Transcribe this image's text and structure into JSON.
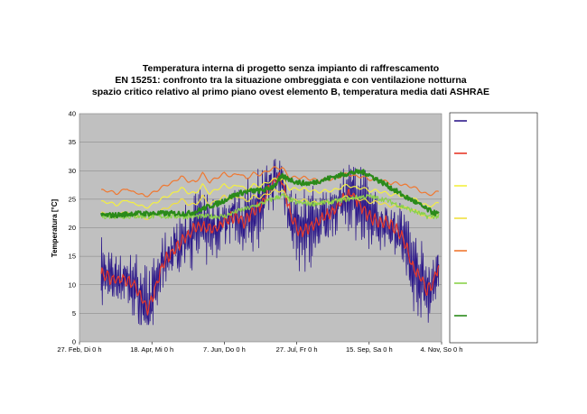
{
  "chart_data": {
    "type": "line",
    "title_lines": [
      "Temperatura interna di progetto senza impianto di raffrescamento",
      "EN 15251: confronto tra la situazione ombreggiata e con ventilazione notturna",
      "spazio critico relativo al primo piano ovest elemento B, temperatura media dati ASHRAE"
    ],
    "ylabel": "Temperatura [°C]",
    "xlabel": "",
    "ylim": [
      0,
      40
    ],
    "yticks": [
      0,
      5,
      10,
      15,
      20,
      25,
      30,
      35,
      40
    ],
    "xlim": [
      0,
      250
    ],
    "xticks": [
      {
        "day": 0,
        "label": "27. Feb, Di 0 h"
      },
      {
        "day": 50,
        "label": "18. Apr, Mi 0 h"
      },
      {
        "day": 100,
        "label": "7. Jun, Do 0 h"
      },
      {
        "day": 150,
        "label": "27. Jul, Fr 0 h"
      },
      {
        "day": 200,
        "label": "15. Sep, Sa 0 h"
      },
      {
        "day": 250,
        "label": "4. Nov, So 0 h"
      }
    ],
    "grid": true,
    "legend_placement": "right",
    "series": [
      {
        "color": "#2e1a8a",
        "style": "noisy",
        "x": [
          15,
          22,
          30,
          38,
          42,
          47,
          52,
          58,
          65,
          72,
          80,
          88,
          95,
          100,
          107,
          114,
          120,
          126,
          131,
          137,
          140,
          146,
          152,
          158,
          164,
          170,
          176,
          182,
          188,
          194,
          200,
          206,
          212,
          218,
          224,
          230,
          236,
          240,
          244,
          246,
          248
        ],
        "y": [
          12,
          11,
          11,
          10,
          8,
          5.5,
          9,
          14,
          16,
          18,
          20,
          20,
          20,
          21,
          22,
          21,
          23,
          24,
          27,
          29,
          28,
          22,
          19,
          20,
          21,
          22,
          23,
          25,
          26,
          24,
          22,
          21,
          21,
          20,
          18,
          13,
          11,
          9,
          10,
          12,
          13
        ]
      },
      {
        "color": "#e8382a",
        "style": "smooth",
        "x": [
          15,
          22,
          30,
          38,
          42,
          47,
          52,
          58,
          65,
          72,
          80,
          88,
          95,
          100,
          107,
          114,
          120,
          126,
          131,
          137,
          140,
          146,
          152,
          158,
          164,
          170,
          176,
          182,
          188,
          194,
          200,
          206,
          212,
          218,
          224,
          230,
          236,
          240,
          244,
          246,
          248
        ],
        "y": [
          12,
          11,
          11,
          10,
          8,
          5.5,
          9,
          14,
          16,
          18,
          20,
          20,
          20,
          21,
          22,
          21,
          23,
          24,
          27,
          29,
          28,
          22,
          19,
          20,
          21,
          22,
          23,
          25,
          26,
          24,
          22,
          21,
          21,
          20,
          18,
          13,
          11,
          9,
          10,
          12,
          13
        ]
      },
      {
        "color": "#f4f040",
        "style": "comfort",
        "x": [
          15,
          20,
          25,
          30,
          33,
          36,
          40,
          45,
          50,
          55,
          60,
          65,
          70,
          75,
          80,
          85,
          90,
          95,
          100,
          105,
          110,
          115,
          120,
          125,
          130,
          135,
          140,
          145,
          150,
          155,
          160,
          165,
          170,
          175,
          180,
          185,
          190,
          195,
          200,
          205,
          210,
          215,
          220,
          225,
          230,
          235,
          240,
          245,
          248
        ],
        "y": [
          24.5,
          24.5,
          24,
          24.5,
          25,
          24.2,
          24.2,
          23.5,
          24,
          24.8,
          25.5,
          26,
          27,
          26.2,
          26,
          27.5,
          26,
          26.8,
          27.5,
          27,
          27.6,
          26.6,
          27.5,
          27.3,
          28,
          28.5,
          28.5,
          26.8,
          26.8,
          26.8,
          26.5,
          26.3,
          26.5,
          26.5,
          27,
          27.5,
          27,
          27,
          26.5,
          26.5,
          26.2,
          25.8,
          25.8,
          25.4,
          25.2,
          24.5,
          23.8,
          24,
          24.4
        ]
      },
      {
        "color": "#f0e040",
        "style": "comfort",
        "x": [
          15,
          20,
          25,
          30,
          33,
          36,
          40,
          45,
          50,
          55,
          60,
          65,
          70,
          75,
          80,
          85,
          90,
          95,
          100,
          105,
          110,
          115,
          120,
          125,
          130,
          135,
          140,
          145,
          150,
          155,
          160,
          165,
          170,
          175,
          180,
          185,
          190,
          195,
          200,
          205,
          210,
          215,
          220,
          225,
          230,
          235,
          240,
          245,
          248
        ],
        "y": [
          22.5,
          22.5,
          22,
          22.5,
          23,
          22.2,
          22.2,
          21.5,
          22,
          22.8,
          23.5,
          24,
          25,
          24.2,
          24,
          25.5,
          24,
          24.8,
          25.5,
          25,
          25.6,
          24.6,
          25.5,
          25.3,
          26,
          26.5,
          26.5,
          24.8,
          24.8,
          24.8,
          24.5,
          24.3,
          24.5,
          24.5,
          25,
          25.5,
          25,
          25,
          24.5,
          24.5,
          24.2,
          23.8,
          23.8,
          23.4,
          23.2,
          22.5,
          21.8,
          22,
          22.4
        ]
      },
      {
        "color": "#f07830",
        "style": "comfort",
        "x": [
          15,
          20,
          25,
          30,
          33,
          36,
          40,
          45,
          50,
          55,
          60,
          65,
          70,
          75,
          80,
          85,
          90,
          95,
          100,
          105,
          110,
          115,
          120,
          125,
          130,
          135,
          140,
          145,
          150,
          155,
          160,
          165,
          170,
          175,
          180,
          185,
          190,
          195,
          200,
          205,
          210,
          215,
          220,
          225,
          230,
          235,
          240,
          245,
          248
        ],
        "y": [
          26.5,
          26.5,
          26,
          26.5,
          27,
          26.2,
          26.2,
          25.5,
          26,
          26.8,
          27.5,
          28,
          29,
          28.2,
          28,
          29.5,
          28,
          28.8,
          29.5,
          29,
          29.6,
          28.6,
          29.5,
          29.3,
          30,
          30.5,
          30.5,
          28.8,
          28.8,
          28.8,
          28.5,
          28.3,
          28.5,
          28.5,
          29,
          29.5,
          29,
          29,
          28.5,
          28.5,
          28.2,
          27.8,
          27.8,
          27.4,
          27.2,
          26.5,
          25.8,
          26,
          26.4
        ]
      },
      {
        "color": "#8ad24a",
        "style": "green",
        "x": [
          15,
          20,
          25,
          30,
          33,
          36,
          40,
          45,
          50,
          55,
          60,
          65,
          70,
          75,
          80,
          85,
          90,
          95,
          100,
          105,
          110,
          115,
          120,
          125,
          130,
          135,
          140,
          145,
          150,
          155,
          160,
          165,
          170,
          175,
          180,
          185,
          190,
          195,
          200,
          205,
          210,
          215,
          220,
          225,
          230,
          235,
          240,
          245,
          248
        ],
        "y": [
          22,
          22,
          22,
          22,
          22,
          22,
          22,
          22,
          22,
          22,
          22,
          22,
          22,
          22,
          22,
          22,
          22,
          22,
          22,
          22.5,
          23,
          23.3,
          23.7,
          24.2,
          24.7,
          25.2,
          25.7,
          25,
          24.4,
          24.3,
          24.2,
          24.3,
          24.4,
          24.6,
          24.8,
          25,
          25.3,
          25.4,
          25.5,
          25.2,
          25,
          24.5,
          24,
          23.5,
          23,
          22.5,
          22,
          22,
          22
        ]
      },
      {
        "color": "#2a8a1a",
        "style": "green",
        "x": [
          15,
          20,
          25,
          30,
          33,
          36,
          40,
          45,
          50,
          55,
          60,
          65,
          70,
          75,
          80,
          85,
          90,
          95,
          100,
          105,
          110,
          115,
          120,
          125,
          130,
          135,
          140,
          145,
          150,
          155,
          160,
          165,
          170,
          175,
          180,
          185,
          190,
          195,
          200,
          205,
          210,
          215,
          220,
          225,
          230,
          235,
          240,
          245,
          248
        ],
        "y": [
          22.2,
          22.2,
          22.2,
          22.3,
          22.4,
          22.5,
          22.5,
          22.5,
          22.5,
          22.5,
          22.5,
          22.5,
          22.5,
          22.5,
          22.8,
          23.3,
          23.8,
          24.2,
          24.8,
          25.5,
          26,
          26.3,
          26.5,
          26.5,
          26.8,
          27.5,
          29,
          28.5,
          28,
          27.8,
          27.8,
          28.2,
          28.5,
          28.9,
          29.2,
          29.5,
          29.7,
          29.8,
          29.3,
          28.5,
          27.8,
          27,
          26.2,
          25.4,
          24.8,
          24,
          23.2,
          22.6,
          22.4
        ]
      }
    ]
  }
}
